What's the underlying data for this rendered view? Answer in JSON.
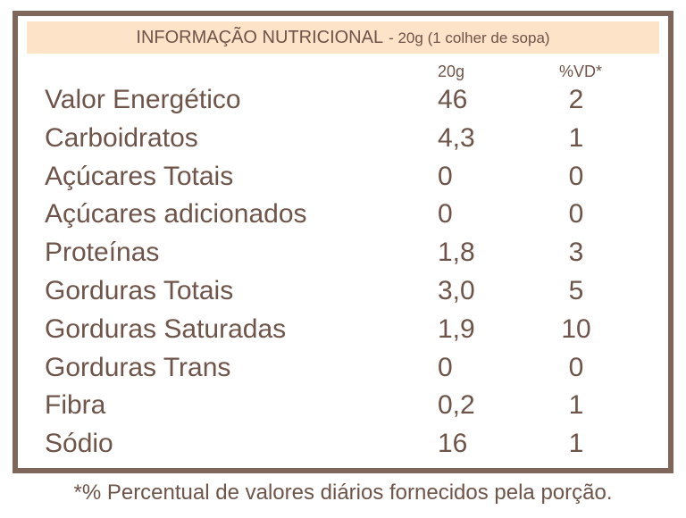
{
  "header": {
    "title": "INFORMAÇÃO NUTRICIONAL",
    "serving": "- 20g (1 colher de sopa)"
  },
  "columns": {
    "amount": "20g",
    "dv": "%VD*"
  },
  "rows": [
    {
      "label": "Valor Energético",
      "amount": "46",
      "dv": "2"
    },
    {
      "label": "Carboidratos",
      "amount": "4,3",
      "dv": "1"
    },
    {
      "label": "Açúcares Totais",
      "amount": "0",
      "dv": "0"
    },
    {
      "label": "Açúcares adicionados",
      "amount": "0",
      "dv": "0"
    },
    {
      "label": "Proteínas",
      "amount": "1,8",
      "dv": "3"
    },
    {
      "label": "Gorduras Totais",
      "amount": "3,0",
      "dv": "5"
    },
    {
      "label": "Gorduras Saturadas",
      "amount": "1,9",
      "dv": "10"
    },
    {
      "label": "Gorduras Trans",
      "amount": "0",
      "dv": "0"
    },
    {
      "label": "Fibra",
      "amount": "0,2",
      "dv": "1"
    },
    {
      "label": "Sódio",
      "amount": "16",
      "dv": "1"
    }
  ],
  "footnote": "*% Percentual de valores diários fornecidos pela porção.",
  "colors": {
    "border": "#7e665b",
    "header_band": "#fde3c8",
    "text": "#6e5449"
  }
}
